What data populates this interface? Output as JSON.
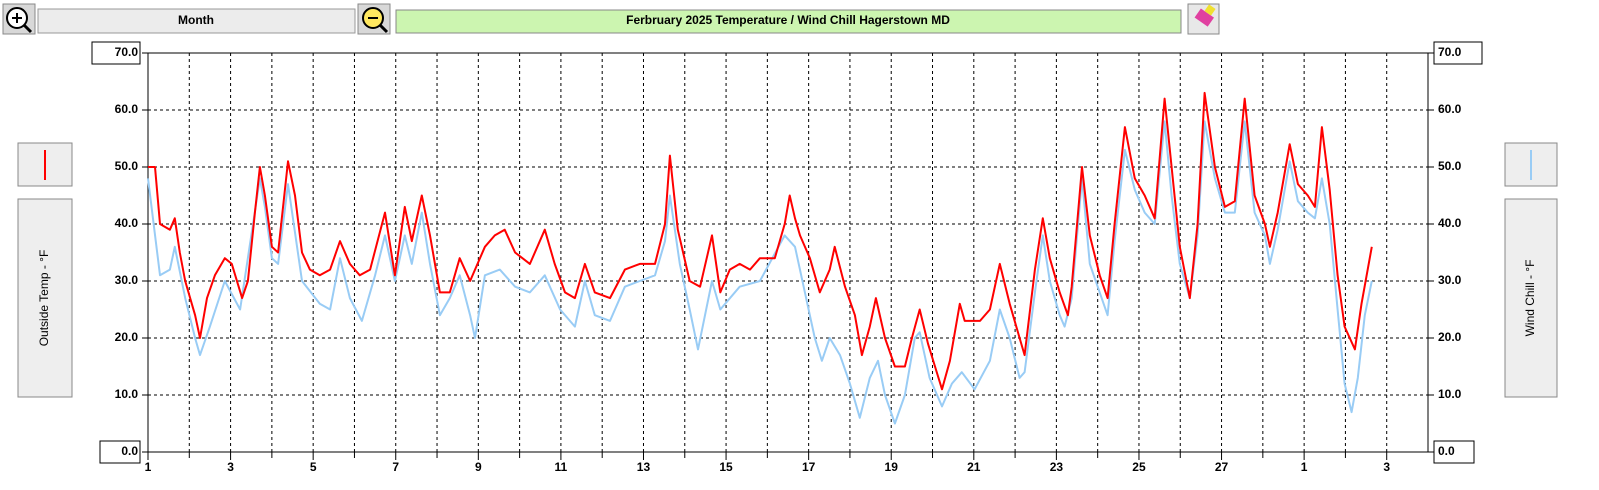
{
  "toolbar": {
    "range": "Month"
  },
  "chart_data": {
    "type": "line",
    "title": "Ferbruary  2025  Temperature  / Wind Chill   Hagerstown MD",
    "ylabel": "Outside Temp - °F",
    "y2label": "Wind Chill - °F",
    "xlim": [
      1,
      32
    ],
    "xticks": [
      1,
      3,
      5,
      7,
      9,
      11,
      13,
      15,
      17,
      19,
      21,
      23,
      25,
      27,
      {
        "value": 29,
        "label": "1"
      },
      {
        "value": 31,
        "label": "3"
      }
    ],
    "x_minor_ticks": [
      2,
      4,
      6,
      8,
      10,
      12,
      14,
      16,
      18,
      20,
      22,
      24,
      26,
      28,
      30
    ],
    "ylim": [
      0,
      70
    ],
    "yticks": [
      {
        "value": 0,
        "label": "0.0"
      },
      {
        "value": 10,
        "label": "10.0"
      },
      {
        "value": 20,
        "label": "20.0"
      },
      {
        "value": 30,
        "label": "30.0"
      },
      {
        "value": 40,
        "label": "40.0"
      },
      {
        "value": 50,
        "label": "50.0"
      },
      {
        "value": 60,
        "label": "60.0"
      },
      {
        "value": 70,
        "label": "70.0"
      }
    ],
    "y2lim": [
      0,
      70
    ],
    "y2ticks": [
      {
        "value": 0,
        "label": "0.0"
      },
      {
        "value": 10,
        "label": "10.0"
      },
      {
        "value": 20,
        "label": "20.0"
      },
      {
        "value": 30,
        "label": "30.0"
      },
      {
        "value": 40,
        "label": "40.0"
      },
      {
        "value": 50,
        "label": "50.0"
      },
      {
        "value": 60,
        "label": "60.0"
      },
      {
        "value": 70,
        "label": "70.0"
      }
    ],
    "grid": true,
    "series": [
      {
        "color": "#ff0000",
        "x": [
          1.0,
          1.17,
          1.29,
          1.53,
          1.65,
          1.77,
          1.9,
          2.14,
          2.26,
          2.43,
          2.62,
          2.86,
          3.03,
          3.28,
          3.42,
          3.59,
          3.71,
          3.83,
          4.0,
          4.15,
          4.39,
          4.56,
          4.73,
          4.92,
          5.16,
          5.41,
          5.65,
          5.89,
          6.13,
          6.38,
          6.74,
          6.98,
          7.22,
          7.39,
          7.63,
          7.83,
          8.07,
          8.31,
          8.55,
          8.8,
          9.16,
          9.4,
          9.64,
          9.89,
          10.25,
          10.61,
          10.85,
          11.1,
          11.34,
          11.58,
          11.82,
          12.19,
          12.55,
          12.91,
          13.28,
          13.52,
          13.64,
          13.83,
          14.12,
          14.37,
          14.66,
          14.86,
          15.09,
          15.33,
          15.58,
          15.82,
          16.18,
          16.42,
          16.54,
          16.67,
          16.79,
          17.03,
          17.27,
          17.51,
          17.63,
          17.88,
          18.12,
          18.29,
          18.48,
          18.63,
          18.85,
          19.09,
          19.33,
          19.5,
          19.69,
          19.89,
          20.06,
          20.23,
          20.42,
          20.66,
          20.78,
          21.15,
          21.39,
          21.63,
          21.87,
          22.11,
          22.23,
          22.48,
          22.67,
          22.84,
          23.08,
          23.28,
          23.37,
          23.62,
          23.81,
          24.05,
          24.24,
          24.41,
          24.66,
          24.9,
          25.14,
          25.38,
          25.62,
          25.79,
          25.99,
          26.23,
          26.42,
          26.59,
          26.84,
          27.08,
          27.32,
          27.56,
          27.8,
          28.05,
          28.17,
          28.36,
          28.65,
          28.85,
          29.09,
          29.26,
          29.43,
          29.62,
          29.81,
          29.98,
          30.23,
          30.39,
          30.64
        ],
        "values": [
          50,
          50,
          40,
          39,
          41,
          35,
          30,
          24,
          20,
          27,
          31,
          34,
          33,
          27,
          30,
          42,
          50,
          45,
          36,
          35,
          51,
          45,
          35,
          32,
          31,
          32,
          37,
          33,
          31,
          32,
          42,
          31,
          43,
          37,
          45,
          38,
          28,
          28,
          34,
          30,
          36,
          38,
          39,
          35,
          33,
          39,
          33,
          28,
          27,
          33,
          28,
          27,
          32,
          33,
          33,
          40,
          52,
          39,
          30,
          29,
          38,
          28,
          32,
          33,
          32,
          34,
          34,
          40,
          45,
          41,
          38,
          34,
          28,
          32,
          36,
          29,
          24,
          17,
          22,
          27,
          20,
          15,
          15,
          20,
          25,
          19,
          15,
          11,
          16,
          26,
          23,
          23,
          25,
          33,
          26,
          20,
          17,
          32,
          41,
          34,
          28,
          24,
          29,
          50,
          38,
          31,
          27,
          40,
          57,
          48,
          45,
          41,
          62,
          50,
          36,
          27,
          40,
          63,
          50,
          43,
          44,
          62,
          45,
          40,
          36,
          42,
          54,
          47,
          45,
          43,
          57,
          46,
          31,
          22,
          18,
          26,
          36
        ]
      },
      {
        "color": "#99ccf5",
        "axis": "y2",
        "x": [
          1.0,
          1.29,
          1.53,
          1.65,
          1.9,
          2.14,
          2.26,
          2.5,
          2.86,
          3.23,
          3.71,
          3.83,
          4.0,
          4.15,
          4.39,
          4.73,
          5.16,
          5.41,
          5.65,
          5.89,
          6.18,
          6.5,
          6.74,
          6.98,
          7.22,
          7.39,
          7.63,
          7.83,
          8.07,
          8.31,
          8.55,
          8.8,
          8.92,
          9.16,
          9.52,
          9.89,
          10.25,
          10.61,
          10.98,
          11.34,
          11.58,
          11.82,
          12.19,
          12.55,
          12.91,
          13.28,
          13.52,
          13.64,
          13.88,
          14.12,
          14.32,
          14.66,
          14.86,
          15.33,
          15.82,
          16.42,
          16.67,
          16.91,
          17.15,
          17.32,
          17.51,
          17.76,
          18.0,
          18.24,
          18.48,
          18.68,
          18.85,
          19.09,
          19.33,
          19.57,
          19.69,
          19.93,
          20.23,
          20.47,
          20.71,
          21.02,
          21.39,
          21.63,
          21.87,
          22.11,
          22.23,
          22.48,
          22.67,
          22.84,
          23.08,
          23.2,
          23.37,
          23.62,
          23.81,
          24.05,
          24.24,
          24.41,
          24.66,
          24.9,
          25.14,
          25.38,
          25.62,
          25.79,
          25.99,
          26.23,
          26.42,
          26.59,
          26.84,
          27.08,
          27.32,
          27.56,
          27.8,
          28.05,
          28.17,
          28.36,
          28.65,
          28.85,
          29.09,
          29.26,
          29.43,
          29.62,
          29.81,
          29.98,
          30.15,
          30.3,
          30.47,
          30.64
        ],
        "values": [
          48,
          31,
          32,
          36,
          27,
          20,
          17,
          22,
          30,
          25,
          48,
          43,
          34,
          33,
          47,
          30,
          26,
          25,
          34,
          27,
          23,
          31,
          38,
          30,
          38,
          33,
          42,
          33,
          24,
          27,
          31,
          24,
          20,
          31,
          32,
          29,
          28,
          31,
          25,
          22,
          30,
          24,
          23,
          29,
          30,
          31,
          37,
          45,
          33,
          25,
          18,
          30,
          25,
          29,
          30,
          38,
          36,
          28,
          20,
          16,
          20,
          17,
          12,
          6,
          13,
          16,
          10,
          5,
          10,
          20,
          21,
          13,
          8,
          12,
          14,
          11,
          16,
          25,
          20,
          13,
          14,
          28,
          38,
          30,
          24,
          22,
          27,
          48,
          33,
          28,
          24,
          37,
          53,
          46,
          42,
          40,
          58,
          45,
          33,
          27,
          38,
          58,
          48,
          42,
          42,
          58,
          42,
          38,
          33,
          39,
          51,
          44,
          42,
          41,
          48,
          40,
          25,
          12,
          7,
          13,
          24,
          30
        ]
      }
    ]
  }
}
